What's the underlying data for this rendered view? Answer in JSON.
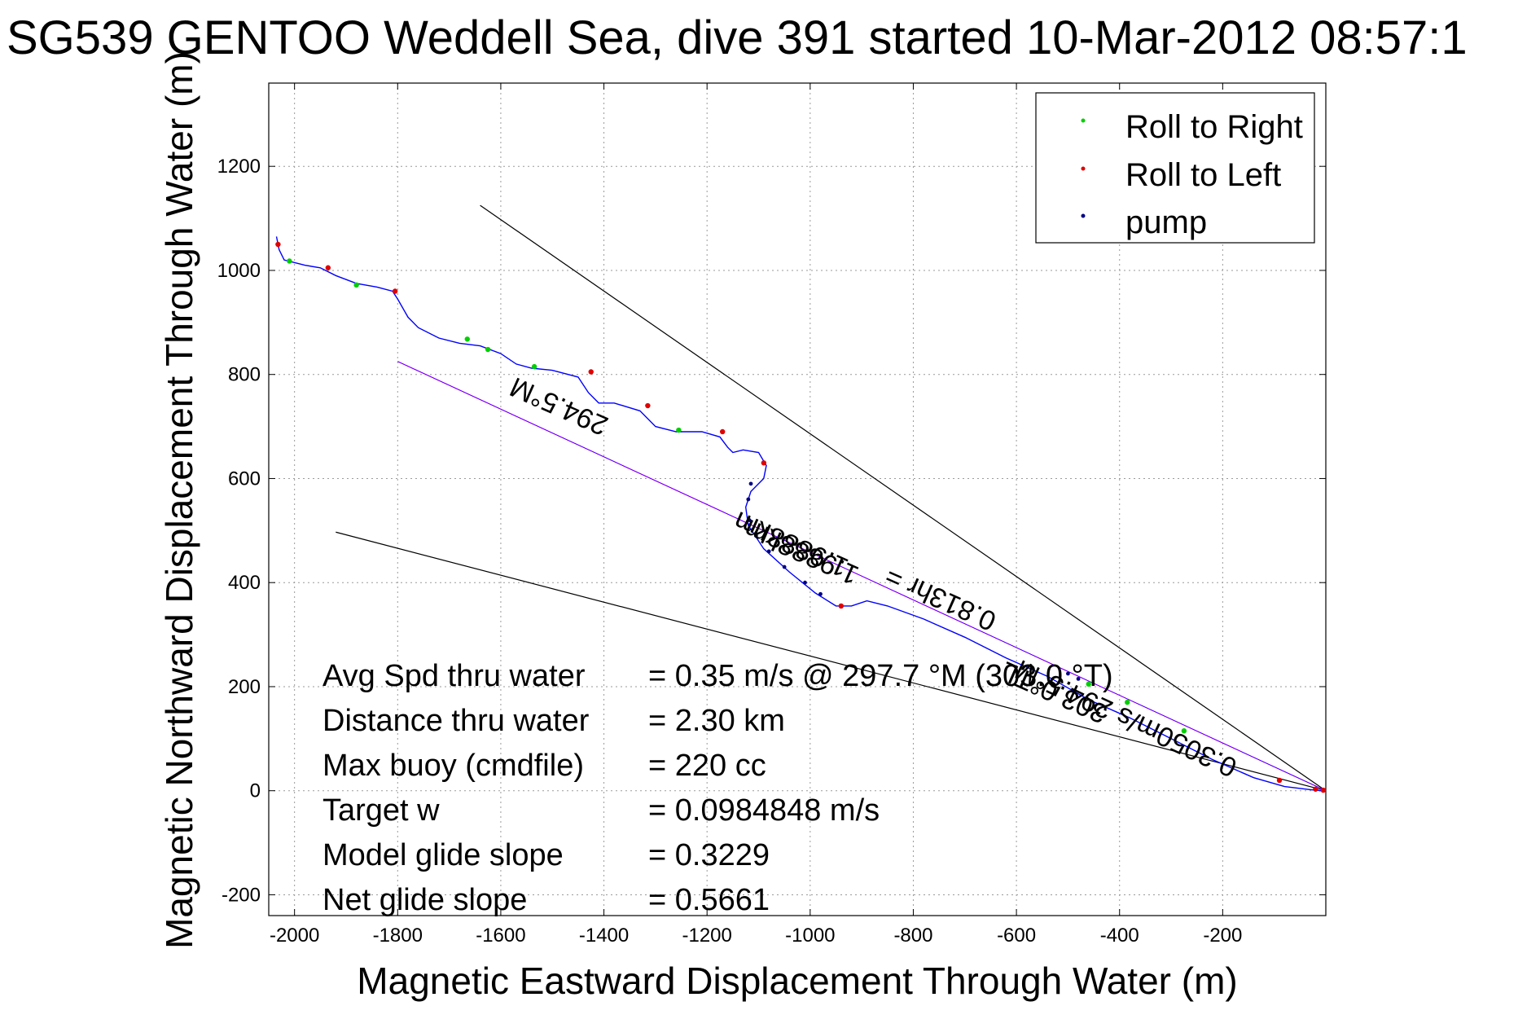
{
  "chart_data": {
    "type": "line",
    "title": "SG539 GENTOO Weddell Sea, dive 391 started 10-Mar-2012 08:57:1",
    "xlabel": "Magnetic Eastward Displacement Through Water (m)",
    "ylabel": "Magnetic Northward Displacement Through Water (m)",
    "xlim": [
      -2050,
      0
    ],
    "ylim": [
      -240,
      1360
    ],
    "xticks": [
      -2000,
      -1800,
      -1600,
      -1400,
      -1200,
      -1000,
      -800,
      -600,
      -400,
      -200
    ],
    "yticks": [
      -200,
      0,
      200,
      400,
      600,
      800,
      1000,
      1200
    ],
    "grid": true,
    "legend": {
      "placement": "top-right",
      "entries": [
        {
          "label": "Roll to Right",
          "color": "#00d000"
        },
        {
          "label": "Roll to Left",
          "color": "#e00000"
        },
        {
          "label": "pump",
          "color": "#000080"
        }
      ]
    },
    "track": {
      "color": "#0000ff",
      "x": [
        -2035,
        -2030,
        -2020,
        -1980,
        -1950,
        -1920,
        -1880,
        -1840,
        -1810,
        -1800,
        -1780,
        -1760,
        -1720,
        -1680,
        -1640,
        -1600,
        -1570,
        -1540,
        -1500,
        -1450,
        -1430,
        -1410,
        -1380,
        -1330,
        -1300,
        -1260,
        -1210,
        -1175,
        -1160,
        -1150,
        -1130,
        -1100,
        -1085,
        -1090,
        -1115,
        -1125,
        -1120,
        -1090,
        -1040,
        -990,
        -950,
        -920,
        -890,
        -850,
        -780,
        -700,
        -620,
        -540,
        -460,
        -380,
        -300,
        -220,
        -140,
        -80,
        -30,
        -10,
        0
      ],
      "y": [
        1065,
        1040,
        1020,
        1010,
        1005,
        990,
        975,
        968,
        960,
        945,
        910,
        890,
        870,
        860,
        855,
        840,
        820,
        812,
        808,
        795,
        765,
        745,
        745,
        730,
        700,
        690,
        690,
        680,
        660,
        650,
        655,
        650,
        625,
        600,
        575,
        545,
        510,
        465,
        420,
        380,
        355,
        355,
        365,
        355,
        330,
        295,
        255,
        220,
        175,
        140,
        100,
        60,
        25,
        8,
        2,
        0,
        0
      ]
    },
    "roll_right_points": {
      "x": [
        -2010,
        -1880,
        -1665,
        -1625,
        -1535,
        -1255,
        -460,
        -385,
        -275
      ],
      "y": [
        1018,
        972,
        868,
        848,
        815,
        693,
        205,
        170,
        115
      ]
    },
    "roll_left_points": {
      "x": [
        -2032,
        -1935,
        -1805,
        -1425,
        -1315,
        -1170,
        -1090,
        -940,
        -90,
        -20,
        -5
      ],
      "y": [
        1050,
        1005,
        960,
        805,
        740,
        690,
        630,
        355,
        20,
        3,
        1
      ]
    },
    "pump_points": {
      "x": [
        -1115,
        -1120,
        -1118,
        -1105,
        -1080,
        -1050,
        -1010,
        -980,
        -500,
        -480
      ],
      "y": [
        590,
        560,
        520,
        490,
        460,
        430,
        400,
        378,
        225,
        215
      ]
    },
    "guide_lines": [
      {
        "color": "#000000",
        "x": [
          -1640,
          0
        ],
        "y": [
          1125,
          0
        ]
      },
      {
        "color": "#000000",
        "x": [
          -1920,
          0
        ],
        "y": [
          497,
          0
        ]
      },
      {
        "color": "#ff00ff",
        "x": [
          -1800,
          0
        ],
        "y": [
          825,
          0
        ]
      },
      {
        "color": "#0000ff",
        "x": [
          -1800,
          0
        ],
        "y": [
          825,
          0
        ]
      }
    ],
    "annotations": [
      {
        "text": "294.5°M",
        "x": -1480,
        "y": 755,
        "rotation_deg": 204
      },
      {
        "text": "0.3050m/s 294.5°M",
        "x": -380,
        "y": 155,
        "rotation_deg": 205
      },
      {
        "text": "1.9888km",
        "x": -1010,
        "y": 475,
        "rotation_deg": 204
      },
      {
        "text": "0.813hr =",
        "x": -740,
        "y": 385,
        "rotation_deg": 204
      },
      {
        "text": "303.0°TL",
        "x": -520,
        "y": 205,
        "rotation_deg": 204
      },
      {
        "text": "1.9888km",
        "x": -1030,
        "y": 490,
        "rotation_deg": 204
      }
    ],
    "stats": [
      {
        "label": "Avg Spd thru water",
        "value": "=  0.35 m/s @ 297.7 °M (303.0 °T)"
      },
      {
        "label": "Distance thru water",
        "value": "=  2.30 km"
      },
      {
        "label": "Max buoy (cmdfile)",
        "value": "= 220 cc"
      },
      {
        "label": "Target w",
        "value": "= 0.0984848 m/s"
      },
      {
        "label": "Model glide slope",
        "value": "= 0.3229"
      },
      {
        "label": "Net glide slope",
        "value": "= 0.5661"
      }
    ]
  }
}
